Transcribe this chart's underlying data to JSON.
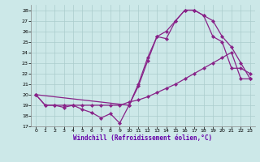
{
  "xlabel": "Windchill (Refroidissement éolien,°C)",
  "xlim": [
    -0.5,
    23.5
  ],
  "ylim": [
    17,
    28.5
  ],
  "yticks": [
    17,
    18,
    19,
    20,
    21,
    22,
    23,
    24,
    25,
    26,
    27,
    28
  ],
  "xticks": [
    0,
    1,
    2,
    3,
    4,
    5,
    6,
    7,
    8,
    9,
    10,
    11,
    12,
    13,
    14,
    15,
    16,
    17,
    18,
    19,
    20,
    21,
    22,
    23
  ],
  "line_color": "#882288",
  "bg_color": "#cce8e8",
  "grid_color": "#aacccc",
  "line1_x": [
    0,
    1,
    2,
    3,
    4,
    5,
    6,
    7,
    8,
    9,
    10,
    11,
    12,
    13,
    14,
    15,
    16,
    17,
    18,
    19,
    20,
    21,
    22,
    23
  ],
  "line1_y": [
    20.0,
    19.0,
    19.0,
    18.8,
    19.0,
    18.6,
    18.3,
    17.8,
    18.2,
    17.3,
    19.0,
    20.8,
    23.2,
    25.5,
    25.3,
    27.0,
    28.0,
    28.0,
    27.5,
    25.5,
    25.0,
    22.5,
    22.5,
    22.0
  ],
  "line2_x": [
    0,
    1,
    2,
    3,
    4,
    5,
    6,
    7,
    8,
    9,
    10,
    11,
    12,
    13,
    14,
    15,
    16,
    17,
    18,
    19,
    20,
    21,
    22,
    23
  ],
  "line2_y": [
    20.0,
    19.0,
    19.0,
    19.0,
    19.0,
    19.0,
    19.0,
    19.0,
    19.0,
    19.0,
    19.3,
    19.5,
    19.8,
    20.2,
    20.6,
    21.0,
    21.5,
    22.0,
    22.5,
    23.0,
    23.5,
    24.0,
    21.5,
    21.5
  ],
  "line3_x": [
    0,
    10,
    11,
    12,
    13,
    14,
    15,
    16,
    17,
    18,
    19,
    20,
    21,
    22,
    23
  ],
  "line3_y": [
    20.0,
    19.0,
    21.0,
    23.5,
    25.5,
    26.0,
    27.0,
    28.0,
    28.0,
    27.5,
    27.0,
    25.5,
    24.5,
    23.0,
    21.5
  ]
}
